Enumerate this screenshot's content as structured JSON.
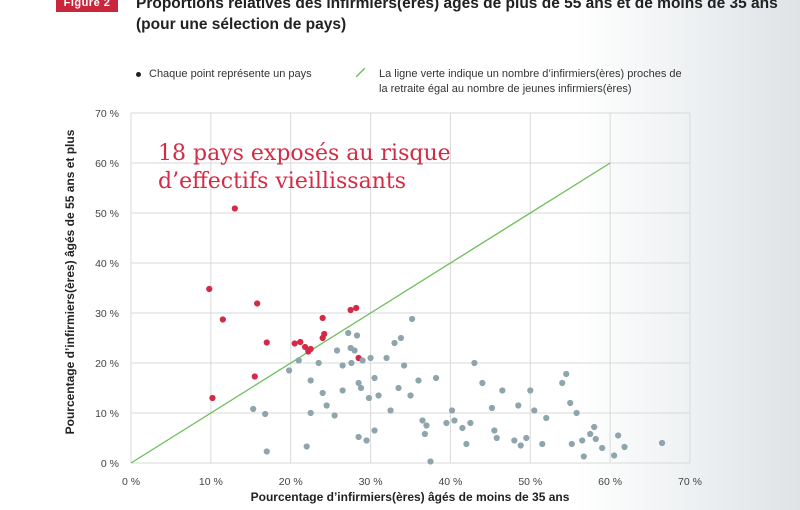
{
  "figure_label": "Figure 2",
  "title": "Proportions relatives des infirmiers(ères) âgés de plus de 55 ans et de moins de 35 ans (pour une sélection de pays)",
  "legend": {
    "points": "Chaque point représente un pays",
    "line": "La ligne verte indique un nombre d’infirmiers(ères) proches de la retraite égal au nombre de jeunes infirmiers(ères)"
  },
  "annotation": "18 pays exposés au risque d’effectifs vieillissants",
  "colors": {
    "highlight": "#d42a45",
    "other": "#8fa5ad",
    "line": "#6cbf5a",
    "grid": "#d9d9d9"
  },
  "chart_data": {
    "type": "scatter",
    "xlabel": "Pourcentage d’infirmiers(ères) âgés de moins de 35 ans",
    "ylabel": "Pourcentage d’infirmiers(ères) âgés de 55 ans et plus",
    "xlim": [
      0,
      70
    ],
    "ylim": [
      0,
      70
    ],
    "x_ticks": [
      "0 %",
      "10 %",
      "20 %",
      "30 %",
      "40 %",
      "50 %",
      "60 %",
      "70 %"
    ],
    "y_ticks": [
      "0 %",
      "10 %",
      "20 %",
      "30 %",
      "40 %",
      "50 %",
      "60 %",
      "70 %"
    ],
    "grid": true,
    "reference_line": {
      "from": [
        0,
        0
      ],
      "to": [
        60,
        60
      ]
    },
    "series": [
      {
        "points": [
          [
            9.8,
            34.8
          ],
          [
            10.2,
            13.0
          ],
          [
            11.5,
            28.7
          ],
          [
            13.0,
            50.9
          ],
          [
            15.5,
            17.3
          ],
          [
            15.8,
            31.9
          ],
          [
            17.0,
            24.1
          ],
          [
            20.5,
            23.9
          ],
          [
            21.2,
            24.2
          ],
          [
            21.8,
            23.2
          ],
          [
            22.2,
            22.3
          ],
          [
            24.0,
            25.0
          ],
          [
            24.2,
            25.8
          ],
          [
            24.0,
            29.0
          ],
          [
            27.5,
            30.6
          ],
          [
            28.2,
            31.0
          ],
          [
            28.5,
            21.0
          ],
          [
            22.5,
            22.8
          ]
        ]
      },
      {
        "points": [
          [
            15.3,
            10.8
          ],
          [
            16.8,
            9.8
          ],
          [
            17.0,
            2.3
          ],
          [
            19.8,
            18.5
          ],
          [
            21.0,
            20.5
          ],
          [
            22.0,
            3.3
          ],
          [
            22.5,
            16.5
          ],
          [
            22.5,
            10.0
          ],
          [
            23.5,
            20.0
          ],
          [
            24.0,
            14.0
          ],
          [
            24.5,
            11.5
          ],
          [
            25.5,
            9.5
          ],
          [
            25.8,
            22.5
          ],
          [
            26.5,
            19.5
          ],
          [
            26.5,
            14.5
          ],
          [
            27.2,
            26.0
          ],
          [
            27.5,
            23.0
          ],
          [
            27.6,
            20.0
          ],
          [
            28.0,
            22.5
          ],
          [
            28.3,
            25.5
          ],
          [
            28.5,
            16.0
          ],
          [
            28.8,
            15.0
          ],
          [
            28.5,
            5.2
          ],
          [
            29.0,
            20.5
          ],
          [
            29.5,
            4.5
          ],
          [
            29.8,
            13.0
          ],
          [
            30.0,
            21.0
          ],
          [
            30.5,
            17.0
          ],
          [
            30.5,
            6.5
          ],
          [
            31.0,
            13.5
          ],
          [
            32.0,
            21.0
          ],
          [
            32.5,
            10.5
          ],
          [
            33.0,
            24.0
          ],
          [
            33.5,
            15.0
          ],
          [
            33.8,
            25.0
          ],
          [
            34.2,
            19.5
          ],
          [
            35.0,
            13.5
          ],
          [
            35.2,
            28.8
          ],
          [
            36.0,
            16.5
          ],
          [
            36.5,
            8.5
          ],
          [
            36.8,
            5.8
          ],
          [
            37.0,
            7.5
          ],
          [
            37.5,
            0.3
          ],
          [
            38.2,
            17.0
          ],
          [
            39.5,
            8.0
          ],
          [
            40.2,
            10.5
          ],
          [
            40.5,
            8.5
          ],
          [
            41.5,
            7.0
          ],
          [
            42.0,
            3.8
          ],
          [
            42.5,
            8.0
          ],
          [
            43.0,
            20.0
          ],
          [
            44.0,
            16.0
          ],
          [
            45.2,
            11.0
          ],
          [
            45.5,
            6.5
          ],
          [
            45.8,
            5.0
          ],
          [
            46.5,
            14.5
          ],
          [
            48.0,
            4.5
          ],
          [
            48.5,
            11.5
          ],
          [
            48.8,
            3.5
          ],
          [
            49.5,
            5.0
          ],
          [
            50.0,
            14.5
          ],
          [
            50.5,
            10.5
          ],
          [
            51.5,
            3.8
          ],
          [
            52.0,
            9.0
          ],
          [
            54.0,
            16.0
          ],
          [
            54.5,
            17.8
          ],
          [
            55.0,
            12.0
          ],
          [
            55.2,
            3.8
          ],
          [
            55.8,
            10.0
          ],
          [
            56.5,
            4.5
          ],
          [
            56.7,
            1.3
          ],
          [
            57.5,
            5.8
          ],
          [
            58.0,
            7.2
          ],
          [
            58.2,
            4.8
          ],
          [
            59.0,
            3.0
          ],
          [
            60.5,
            1.5
          ],
          [
            61.0,
            5.5
          ],
          [
            61.8,
            3.2
          ],
          [
            66.5,
            4.0
          ]
        ]
      }
    ]
  }
}
